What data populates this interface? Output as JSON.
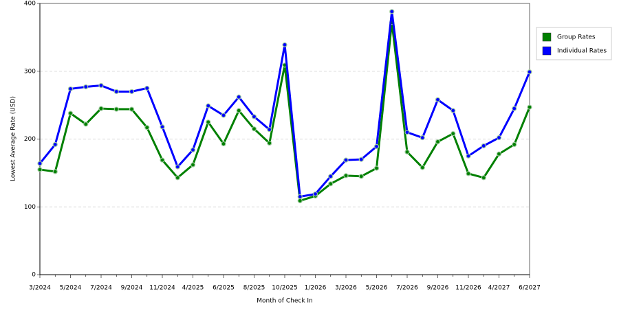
{
  "chart_data": {
    "type": "line",
    "x_label": "Month of Check In",
    "y_label": "Lowest Average Rate (USD)",
    "categories": [
      "3/2024",
      null,
      "5/2024",
      null,
      "7/2024",
      null,
      "9/2024",
      null,
      "11/2024",
      null,
      "4/2025",
      null,
      "6/2025",
      null,
      "8/2025",
      null,
      "10/2025",
      null,
      "1/2026",
      null,
      "3/2026",
      null,
      "5/2026",
      null,
      "7/2026",
      null,
      "9/2026",
      null,
      "11/2026",
      null,
      "4/2027",
      null,
      "6/2027"
    ],
    "series": [
      {
        "name": "Group Rates",
        "color": "#008000",
        "values": [
          155,
          152,
          238,
          222,
          245,
          244,
          244,
          217,
          169,
          143,
          162,
          225,
          193,
          242,
          215,
          194,
          309,
          109,
          116,
          134,
          146,
          145,
          157,
          372,
          181,
          158,
          196,
          208,
          149,
          143,
          178,
          192,
          247
        ]
      },
      {
        "name": "Individual Rates",
        "color": "#0000ff",
        "values": [
          164,
          192,
          274,
          277,
          279,
          270,
          270,
          275,
          218,
          159,
          184,
          249,
          235,
          262,
          233,
          214,
          339,
          115,
          119,
          145,
          169,
          170,
          189,
          388,
          210,
          202,
          258,
          242,
          175,
          190,
          202,
          245,
          299
        ]
      }
    ],
    "ylim": [
      0,
      400
    ],
    "yticks": [
      0,
      100,
      200,
      300,
      400
    ],
    "grid": true,
    "legend": "right"
  }
}
